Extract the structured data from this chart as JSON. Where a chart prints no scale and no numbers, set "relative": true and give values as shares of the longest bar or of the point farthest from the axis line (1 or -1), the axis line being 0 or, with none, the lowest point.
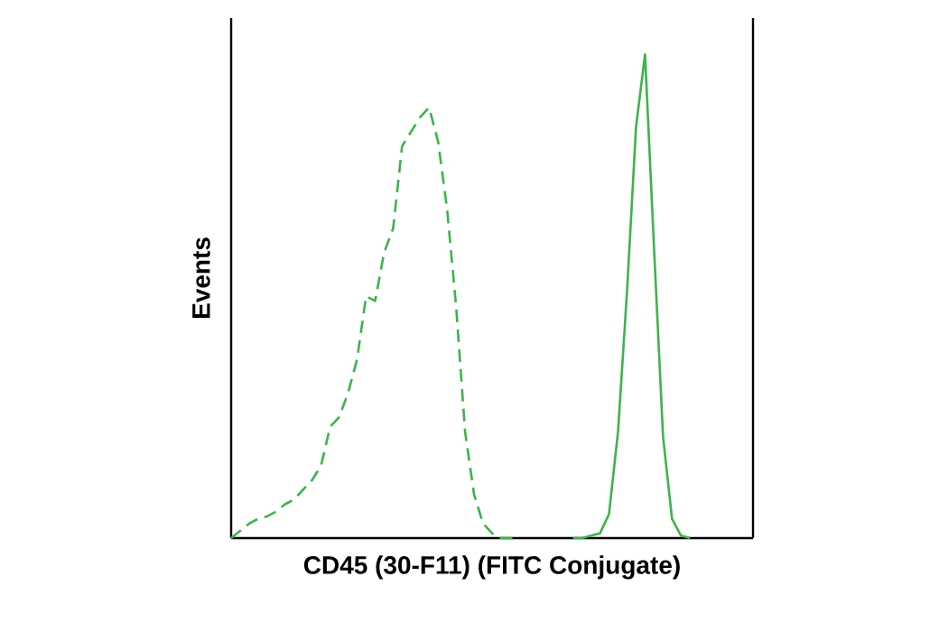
{
  "chart_data": {
    "type": "line",
    "relative": true,
    "xlabel": "CD45 (30-F11) (FITC Conjugate)",
    "ylabel": "Events",
    "categories": [
      null,
      null,
      null,
      null,
      null,
      null,
      null,
      null,
      null,
      null,
      null,
      null,
      null,
      null,
      null,
      null,
      null,
      null,
      null,
      null,
      null,
      null,
      null,
      null,
      null,
      null,
      null,
      null,
      null,
      null,
      null,
      null,
      null,
      null,
      null,
      null,
      null,
      null,
      null,
      null,
      null,
      null,
      null,
      null,
      null,
      null,
      null,
      null,
      null,
      null,
      null,
      null,
      null,
      null,
      null,
      null,
      null,
      null,
      null
    ],
    "series": [
      {
        "color": "#3cb44b",
        "line_style": "dashed",
        "values": [
          0,
          0.015,
          0.03,
          0.04,
          0.045,
          0.055,
          0.07,
          0.08,
          0.1,
          0.12,
          0.15,
          0.23,
          0.25,
          0.3,
          0.37,
          0.5,
          0.49,
          0.59,
          0.64,
          0.81,
          0.84,
          0.87,
          0.89,
          0.82,
          0.68,
          0.48,
          0.22,
          0.09,
          0.03,
          0.01,
          0,
          0,
          0,
          null,
          null,
          null,
          null,
          null,
          null,
          null,
          null,
          null,
          null,
          null,
          null,
          null,
          null,
          null,
          null,
          null,
          null,
          null,
          null,
          null,
          null,
          null,
          null,
          null,
          null
        ]
      },
      {
        "color": "#3cb44b",
        "line_style": "solid",
        "values": [
          null,
          null,
          null,
          null,
          null,
          null,
          null,
          null,
          null,
          null,
          null,
          null,
          null,
          null,
          null,
          null,
          null,
          null,
          null,
          null,
          null,
          null,
          null,
          null,
          null,
          null,
          null,
          null,
          null,
          null,
          null,
          null,
          null,
          null,
          null,
          null,
          null,
          null,
          0,
          0,
          0.005,
          0.01,
          0.05,
          0.22,
          0.51,
          0.85,
          1,
          0.6,
          0.21,
          0.04,
          0.005,
          0,
          null,
          null,
          null,
          null,
          null,
          null,
          null
        ]
      }
    ]
  }
}
